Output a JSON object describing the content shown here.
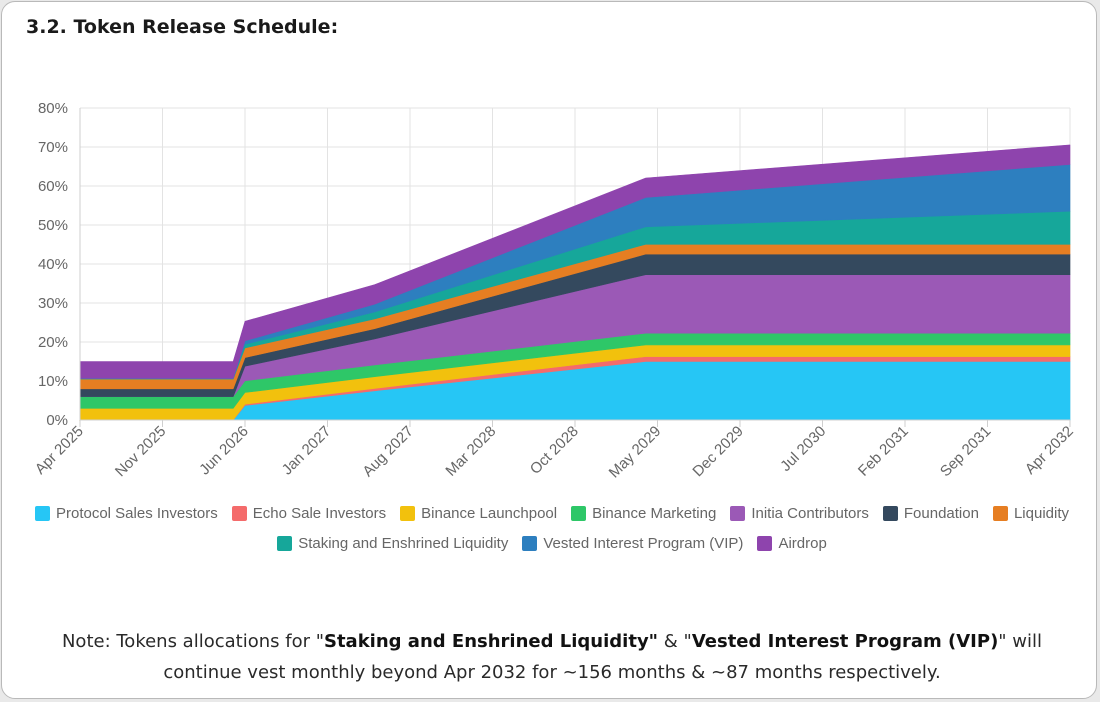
{
  "section_title": "3.2. Token Release Schedule:",
  "chart_data": {
    "type": "area",
    "stacked": true,
    "title": "",
    "xlabel": "",
    "ylabel": "",
    "ylim": [
      0,
      80
    ],
    "yticks": [
      "0%",
      "10%",
      "20%",
      "30%",
      "40%",
      "50%",
      "60%",
      "70%",
      "80%"
    ],
    "grid": true,
    "x_start": "Apr 2025",
    "x_end": "Apr 2032",
    "x_tick_labels": [
      "Apr 2025",
      "Nov 2025",
      "Jun 2026",
      "Jan 2027",
      "Aug 2027",
      "Mar 2028",
      "Oct 2028",
      "May 2029",
      "Dec 2029",
      "Jul 2030",
      "Feb 2031",
      "Sep 2031",
      "Apr 2032"
    ],
    "x_months": [
      0,
      6,
      13,
      14,
      25,
      48,
      84
    ],
    "series": [
      {
        "name": "Protocol Sales Investors",
        "color": "#26c6f5",
        "values": [
          0,
          0,
          0,
          3.75,
          7.5,
          15,
          15
        ]
      },
      {
        "name": "Echo Sale Investors",
        "color": "#f46b6b",
        "values": [
          0,
          0,
          0,
          0.3,
          0.6,
          1.25,
          1.25
        ]
      },
      {
        "name": "Binance Launchpool",
        "color": "#f2c10d",
        "values": [
          3,
          3,
          3,
          3,
          3,
          3,
          3
        ]
      },
      {
        "name": "Binance Marketing",
        "color": "#2ec768",
        "values": [
          3,
          3,
          3,
          3,
          3,
          3,
          3
        ]
      },
      {
        "name": "Initia Contributors",
        "color": "#9b59b6",
        "values": [
          0,
          0,
          0,
          3.75,
          6.7,
          15,
          15
        ]
      },
      {
        "name": "Foundation",
        "color": "#34495e",
        "values": [
          2,
          2,
          2,
          2.2,
          2.6,
          5.3,
          5.3
        ]
      },
      {
        "name": "Liquidity",
        "color": "#e67e22",
        "values": [
          2.5,
          2.5,
          2.5,
          2.5,
          2.5,
          2.5,
          2.5
        ]
      },
      {
        "name": "Staking and Enshrined Liquidity",
        "color": "#16a79a",
        "values": [
          0.1,
          0.1,
          0.1,
          0.9,
          1.8,
          4.5,
          8.5
        ]
      },
      {
        "name": "Vested Interest Program (VIP)",
        "color": "#2d7fbf",
        "values": [
          0.1,
          0.1,
          0.1,
          0.9,
          2.0,
          7.5,
          12.0
        ]
      },
      {
        "name": "Airdrop",
        "color": "#8e44ad",
        "values": [
          4.3,
          4.3,
          4.3,
          5.0,
          5.0,
          5.0,
          5.0
        ]
      }
    ]
  },
  "note": {
    "prefix": "Note: Tokens allocations for \"",
    "term1": "Staking and Enshrined Liquidity\"",
    "middle": " & \"",
    "term2": "Vested Interest Program (VIP)",
    "suffix": "\" will continue vest monthly beyond Apr 2032 for ~156 months & ~87 months respectively."
  }
}
